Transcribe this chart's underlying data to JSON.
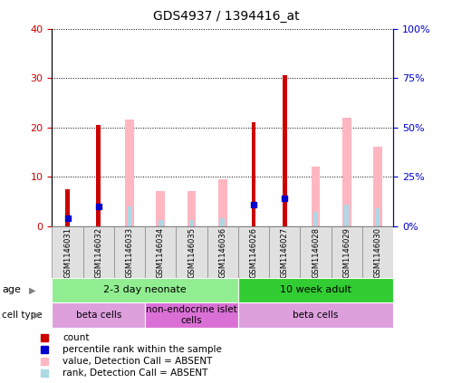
{
  "title": "GDS4937 / 1394416_at",
  "samples": [
    "GSM1146031",
    "GSM1146032",
    "GSM1146033",
    "GSM1146034",
    "GSM1146035",
    "GSM1146036",
    "GSM1146026",
    "GSM1146027",
    "GSM1146028",
    "GSM1146029",
    "GSM1146030"
  ],
  "red_count": [
    7.5,
    20.5,
    0,
    0,
    0,
    0,
    21,
    30.5,
    0,
    0,
    0
  ],
  "pink_value": [
    0,
    0,
    21.5,
    7,
    7,
    9.5,
    0,
    0,
    12,
    22,
    16
  ],
  "blue_rank": [
    4,
    10,
    0,
    0,
    0,
    0,
    11,
    14,
    0,
    0,
    0
  ],
  "lightblue_rank": [
    0,
    0,
    10,
    3,
    3,
    4,
    0,
    0,
    7,
    11,
    9
  ],
  "ylim_left": [
    0,
    40
  ],
  "ylim_right": [
    0,
    100
  ],
  "yticks_left": [
    0,
    10,
    20,
    30,
    40
  ],
  "yticks_right": [
    0,
    25,
    50,
    75,
    100
  ],
  "ytick_labels_right": [
    "0%",
    "25%",
    "50%",
    "75%",
    "100%"
  ],
  "age_groups": [
    {
      "label": "2-3 day neonate",
      "start": 0,
      "end": 6,
      "color": "#90EE90"
    },
    {
      "label": "10 week adult",
      "start": 6,
      "end": 11,
      "color": "#32CD32"
    }
  ],
  "cell_type_groups": [
    {
      "label": "beta cells",
      "start": 0,
      "end": 3,
      "color": "#DDA0DD"
    },
    {
      "label": "non-endocrine islet\ncells",
      "start": 3,
      "end": 6,
      "color": "#DA70D6"
    },
    {
      "label": "beta cells",
      "start": 6,
      "end": 11,
      "color": "#DDA0DD"
    }
  ],
  "bar_color_red": "#CC0000",
  "bar_color_pink": "#FFB6C1",
  "marker_color_blue": "#0000CC",
  "bar_color_lightblue": "#ADD8E6",
  "left_axis_color": "#CC0000",
  "right_axis_color": "#0000CC"
}
